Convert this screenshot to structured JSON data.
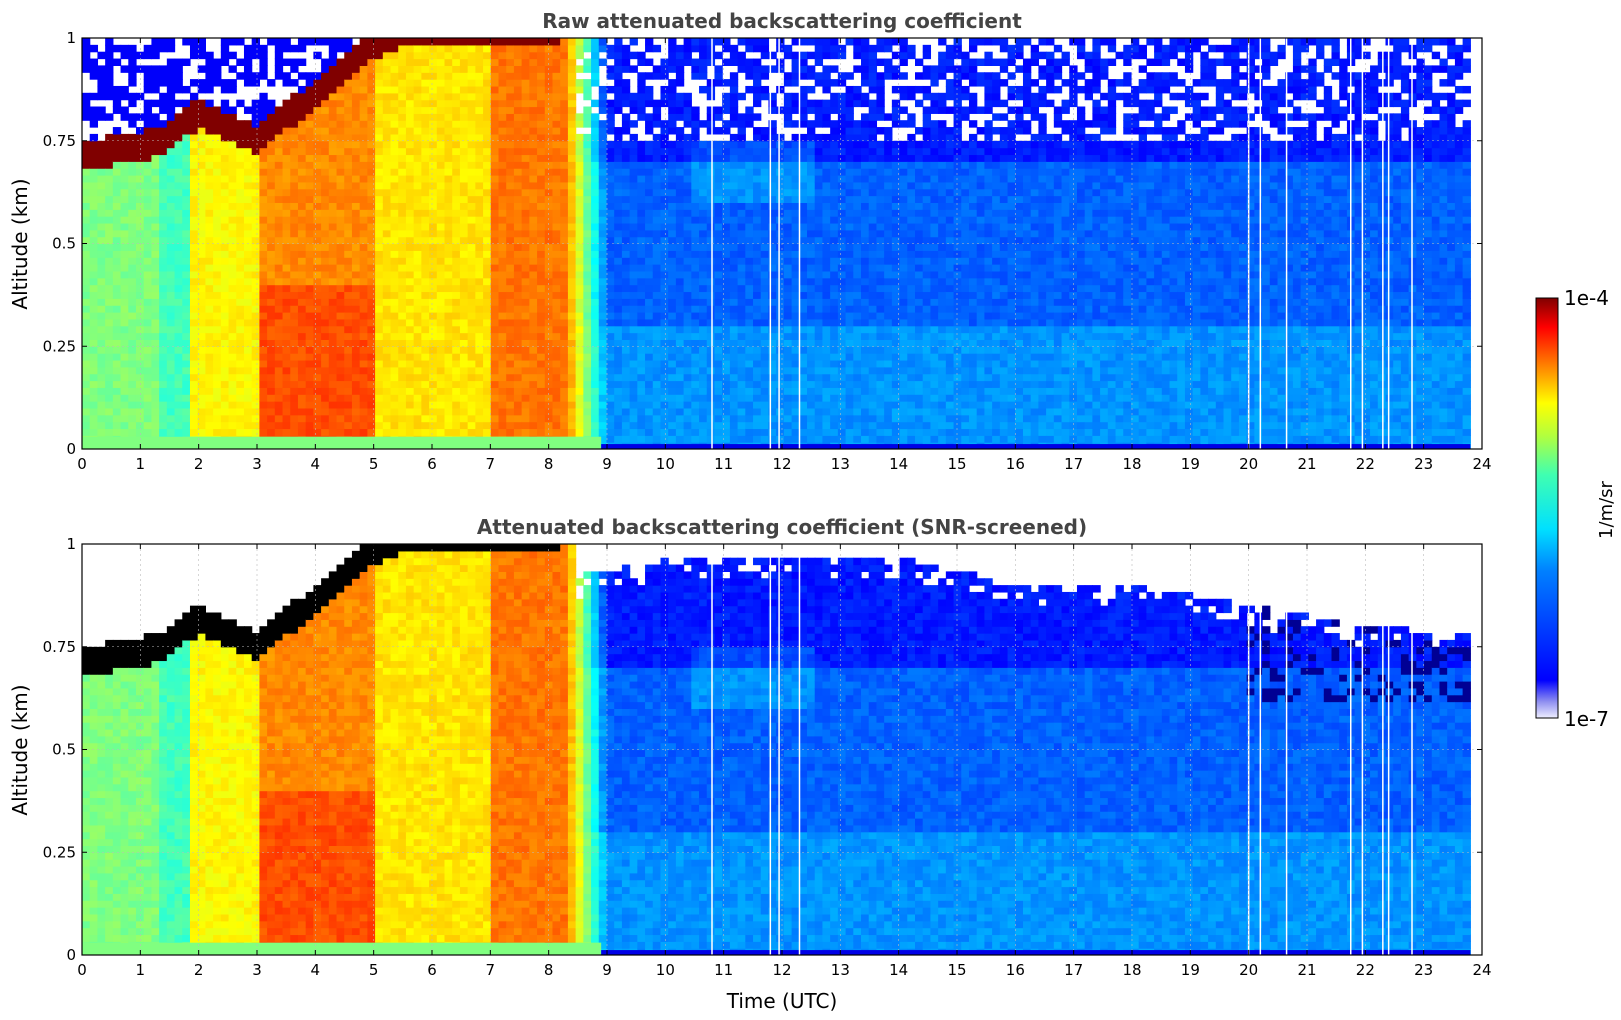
{
  "chart_data": [
    {
      "type": "heatmap",
      "title": "Raw attenuated backscattering coefficient",
      "ylabel": "Altitude (km)",
      "xlabel": "",
      "xlim": [
        0,
        24
      ],
      "ylim": [
        0,
        1
      ],
      "xticks": [
        "0",
        "1",
        "2",
        "3",
        "4",
        "5",
        "6",
        "7",
        "8",
        "9",
        "10",
        "11",
        "12",
        "13",
        "14",
        "15",
        "16",
        "17",
        "18",
        "19",
        "20",
        "21",
        "22",
        "23",
        "24"
      ],
      "yticks": [
        "0",
        "0.25",
        "0.5",
        "0.75",
        "1"
      ],
      "grid": true,
      "screened": false,
      "features": {
        "cloud_base_km": [
          [
            0,
            0.7
          ],
          [
            1.3,
            0.73
          ],
          [
            2,
            0.8
          ],
          [
            3,
            0.74
          ],
          [
            4,
            0.85
          ],
          [
            5,
            0.97
          ],
          [
            5.5,
            1.0
          ]
        ],
        "high_signal_end_utc": [
          [
            0.03,
            8.9
          ],
          [
            1.0,
            8.2
          ]
        ],
        "data_gaps_utc": [
          10.8,
          11.8,
          11.95,
          12.3,
          20.0,
          20.2,
          20.65,
          21.75,
          21.95,
          22.3,
          22.4,
          22.8
        ]
      }
    },
    {
      "type": "heatmap",
      "title": "Attenuated backscattering coefficient (SNR-screened)",
      "ylabel": "Altitude (km)",
      "xlabel": "Time (UTC)",
      "xlim": [
        0,
        24
      ],
      "ylim": [
        0,
        1
      ],
      "xticks": [
        "0",
        "1",
        "2",
        "3",
        "4",
        "5",
        "6",
        "7",
        "8",
        "9",
        "10",
        "11",
        "12",
        "13",
        "14",
        "15",
        "16",
        "17",
        "18",
        "19",
        "20",
        "21",
        "22",
        "23",
        "24"
      ],
      "yticks": [
        "0",
        "0.25",
        "0.5",
        "0.75",
        "1"
      ],
      "grid": true,
      "screened": true,
      "features": {
        "cloud_base_km": [
          [
            0,
            0.7
          ],
          [
            1.3,
            0.73
          ],
          [
            2,
            0.8
          ],
          [
            3,
            0.74
          ],
          [
            4,
            0.85
          ],
          [
            5,
            0.97
          ],
          [
            5.5,
            1.0
          ]
        ],
        "screened_top_km": [
          [
            8.5,
            0.92
          ],
          [
            10,
            0.97
          ],
          [
            14,
            0.97
          ],
          [
            16,
            0.9
          ],
          [
            18,
            0.9
          ],
          [
            20,
            0.85
          ],
          [
            22,
            0.8
          ],
          [
            23.8,
            0.78
          ]
        ],
        "data_gaps_utc": [
          10.8,
          11.8,
          11.95,
          12.3,
          20.0,
          20.2,
          20.65,
          21.75,
          21.95,
          22.3,
          22.4,
          22.8
        ]
      }
    }
  ],
  "colorbar": {
    "max_label": "1e-4",
    "min_label": "1e-7",
    "unit_label": "1/m/sr",
    "colormap": "jet"
  }
}
